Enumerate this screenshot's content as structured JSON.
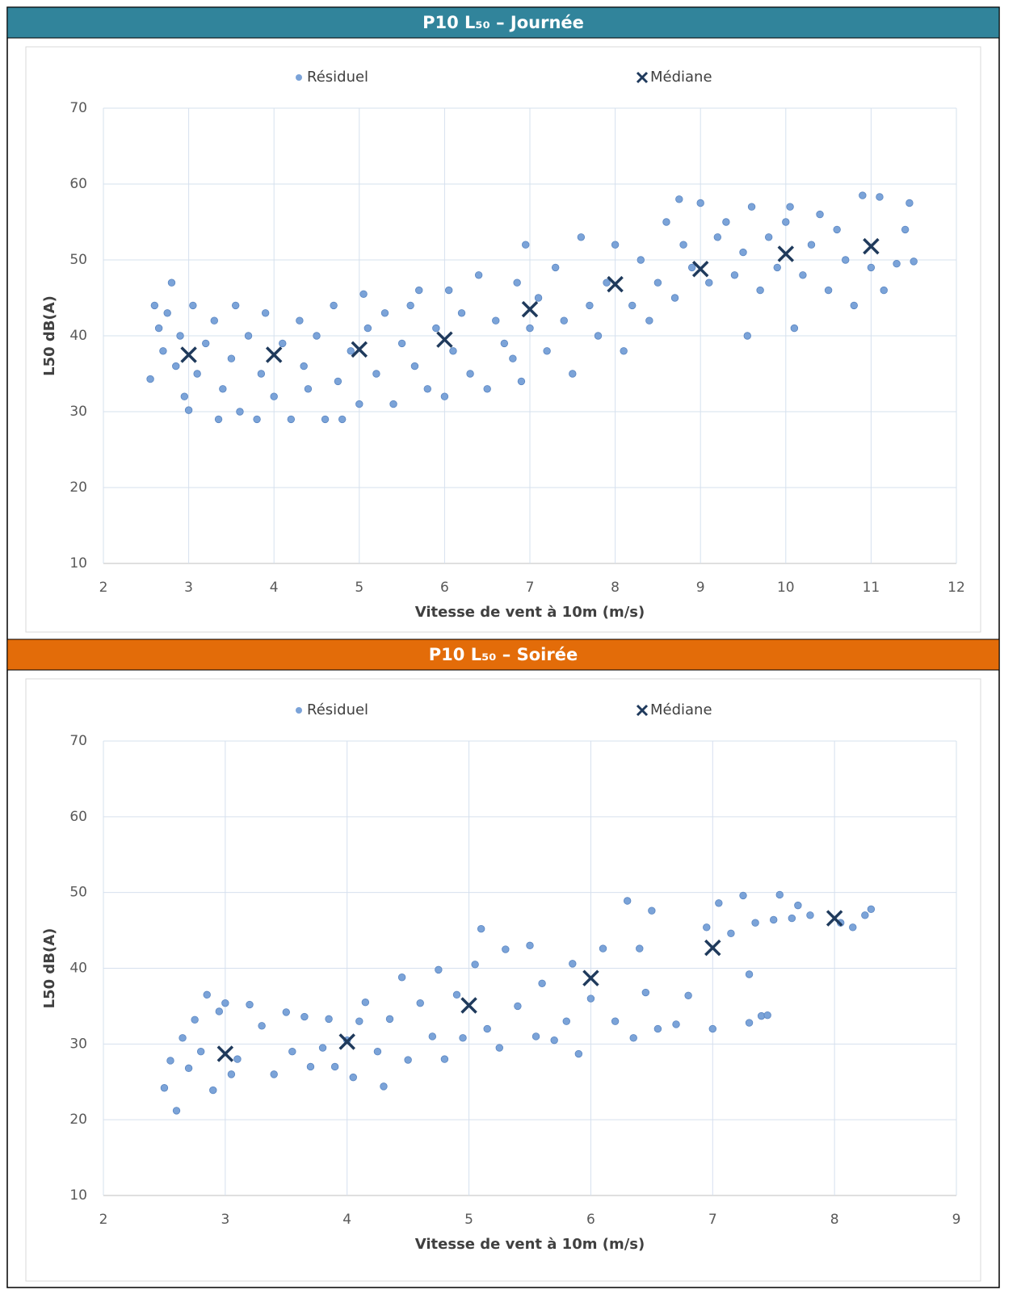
{
  "chart_data": [
    {
      "type": "scatter",
      "title": "P10 L₅₀ – Journée",
      "header_color": "#31849b",
      "x_label": "Vitesse de vent à 10m (m/s)",
      "y_label": "L50 dB(A)",
      "xlim": [
        2,
        12
      ],
      "xticks": [
        2,
        3,
        4,
        5,
        6,
        7,
        8,
        9,
        10,
        11,
        12
      ],
      "ylim": [
        10,
        70
      ],
      "yticks": [
        10,
        20,
        30,
        40,
        50,
        60,
        70
      ],
      "grid": true,
      "legend": "top",
      "series": [
        {
          "name": "Résiduel",
          "color": "#7ba3d8",
          "marker": "circle",
          "x": [
            2.55,
            2.6,
            2.65,
            2.7,
            2.75,
            2.8,
            2.85,
            2.9,
            2.95,
            3.0,
            3.05,
            3.1,
            3.2,
            3.3,
            3.35,
            3.4,
            3.5,
            3.55,
            3.6,
            3.7,
            3.8,
            3.85,
            3.9,
            4.0,
            4.1,
            4.2,
            4.3,
            4.35,
            4.4,
            4.5,
            4.6,
            4.7,
            4.75,
            4.8,
            4.9,
            5.0,
            5.05,
            5.1,
            5.2,
            5.3,
            5.4,
            5.5,
            5.6,
            5.65,
            5.7,
            5.8,
            5.9,
            6.0,
            6.05,
            6.1,
            6.2,
            6.3,
            6.4,
            6.5,
            6.6,
            6.7,
            6.8,
            6.85,
            6.9,
            6.95,
            7.0,
            7.1,
            7.2,
            7.3,
            7.4,
            7.5,
            7.6,
            7.7,
            7.8,
            7.9,
            8.0,
            8.1,
            8.2,
            8.3,
            8.4,
            8.5,
            8.6,
            8.7,
            8.75,
            8.8,
            8.9,
            9.0,
            9.1,
            9.2,
            9.3,
            9.4,
            9.5,
            9.55,
            9.6,
            9.7,
            9.8,
            9.9,
            10.0,
            10.05,
            10.1,
            10.2,
            10.3,
            10.4,
            10.5,
            10.6,
            10.7,
            10.8,
            10.9,
            11.0,
            11.1,
            11.15,
            11.3,
            11.4,
            11.45,
            11.5
          ],
          "values": [
            34.3,
            44,
            41,
            38,
            43,
            47,
            36,
            40,
            32,
            30.2,
            44,
            35,
            39,
            42,
            29,
            33,
            37,
            44,
            30,
            40,
            29,
            35,
            43,
            32,
            39,
            29,
            42,
            36,
            33,
            40,
            29,
            44,
            34,
            29,
            38,
            31,
            45.5,
            41,
            35,
            43,
            31,
            39,
            44,
            36,
            46,
            33,
            41,
            32,
            46,
            38,
            43,
            35,
            48,
            33,
            42,
            39,
            37,
            47,
            34,
            52,
            41,
            45,
            38,
            49,
            42,
            35,
            53,
            44,
            40,
            47,
            52,
            38,
            44,
            50,
            42,
            47,
            55,
            45,
            58,
            52,
            49,
            57.5,
            47,
            53,
            55,
            48,
            51,
            40,
            57,
            46,
            53,
            49,
            55,
            57,
            41,
            48,
            52,
            56,
            46,
            54,
            50,
            44,
            58.5,
            49,
            58.3,
            46,
            49.5,
            54,
            57.5,
            49.8
          ]
        },
        {
          "name": "Médiane",
          "color": "#1f3a5c",
          "marker": "x",
          "x": [
            3,
            4,
            5,
            6,
            7,
            8,
            9,
            10,
            11
          ],
          "values": [
            37.5,
            37.5,
            38.2,
            39.5,
            43.5,
            46.8,
            48.8,
            50.8,
            51.8
          ]
        }
      ]
    },
    {
      "type": "scatter",
      "title": "P10 L₅₀ – Soirée",
      "header_color": "#e36c09",
      "x_label": "Vitesse de vent à 10m (m/s)",
      "y_label": "L50 dB(A)",
      "xlim": [
        2,
        9
      ],
      "xticks": [
        2,
        3,
        4,
        5,
        6,
        7,
        8,
        9
      ],
      "ylim": [
        10,
        70
      ],
      "yticks": [
        10,
        20,
        30,
        40,
        50,
        60,
        70
      ],
      "grid": true,
      "legend": "top",
      "series": [
        {
          "name": "Résiduel",
          "color": "#7ba3d8",
          "marker": "circle",
          "x": [
            2.5,
            2.55,
            2.6,
            2.65,
            2.7,
            2.75,
            2.8,
            2.85,
            2.9,
            2.95,
            3.0,
            3.05,
            3.1,
            3.2,
            3.3,
            3.4,
            3.5,
            3.55,
            3.65,
            3.7,
            3.8,
            3.85,
            3.9,
            4.0,
            4.05,
            4.1,
            4.15,
            4.25,
            4.3,
            4.35,
            4.45,
            4.5,
            4.6,
            4.7,
            4.75,
            4.8,
            4.9,
            4.95,
            5.05,
            5.1,
            5.15,
            5.25,
            5.3,
            5.4,
            5.5,
            5.55,
            5.6,
            5.7,
            5.8,
            5.85,
            5.9,
            6.0,
            6.1,
            6.2,
            6.3,
            6.35,
            6.4,
            6.45,
            6.5,
            6.55,
            6.7,
            6.8,
            6.95,
            7.0,
            7.05,
            7.15,
            7.25,
            7.3,
            7.35,
            7.4,
            7.5,
            7.55,
            7.65,
            7.7,
            7.8,
            8.05,
            8.15,
            8.25,
            8.3,
            7.3,
            7.45
          ],
          "values": [
            24.2,
            27.8,
            21.2,
            30.8,
            26.8,
            33.2,
            29,
            36.5,
            23.9,
            34.3,
            35.4,
            26,
            28,
            35.2,
            32.4,
            26,
            34.2,
            29,
            33.6,
            27,
            29.5,
            33.3,
            27,
            30.5,
            25.6,
            33,
            35.5,
            29,
            24.4,
            33.3,
            38.8,
            27.9,
            35.4,
            31,
            39.8,
            28,
            36.5,
            30.8,
            40.5,
            45.2,
            32,
            29.5,
            42.5,
            35,
            43,
            31,
            38,
            30.5,
            33,
            40.6,
            28.7,
            36,
            42.6,
            33,
            48.9,
            30.8,
            42.6,
            36.8,
            47.6,
            32,
            32.6,
            36.4,
            45.4,
            32,
            48.6,
            44.6,
            49.6,
            39.2,
            46,
            33.7,
            46.4,
            49.7,
            46.6,
            48.3,
            47,
            46,
            45.4,
            47,
            47.8,
            32.8,
            33.8
          ]
        },
        {
          "name": "Médiane",
          "color": "#1f3a5c",
          "marker": "x",
          "x": [
            3,
            4,
            5,
            6,
            7,
            8
          ],
          "values": [
            28.7,
            30.3,
            35.1,
            38.7,
            42.7,
            46.6
          ]
        }
      ]
    }
  ]
}
